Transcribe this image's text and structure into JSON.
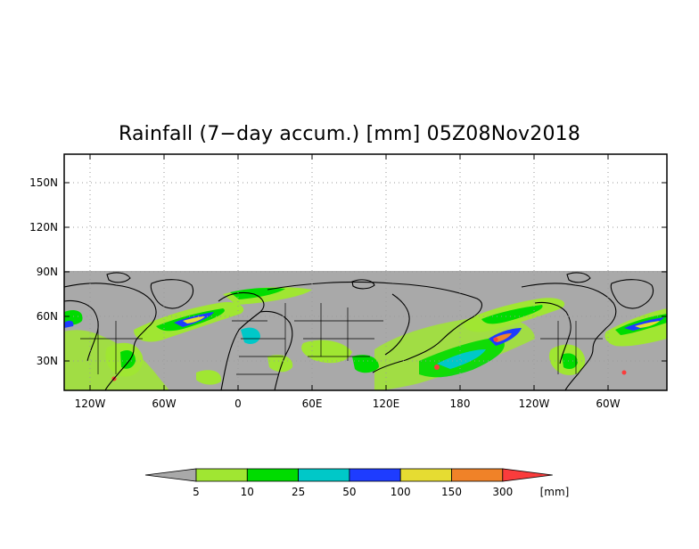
{
  "title": "Rainfall (7−day accum.) [mm] 05Z08Nov2018",
  "map": {
    "y_ticks": [
      "150N",
      "120N",
      "90N",
      "60N",
      "30N"
    ],
    "x_ticks": [
      "120W",
      "60W",
      "0",
      "60E",
      "120E",
      "180",
      "120W",
      "60W"
    ],
    "grid": "dotted",
    "no_data_color": "#a9a9a9"
  },
  "colorbar": {
    "units": "[mm]",
    "levels": [
      "5",
      "10",
      "25",
      "50",
      "100",
      "150",
      "300"
    ],
    "colors": [
      "#a9a9a9",
      "#a0e632",
      "#00dc00",
      "#00c8c8",
      "#1e3cff",
      "#e6dc32",
      "#f08228",
      "#fa3c3c"
    ]
  }
}
